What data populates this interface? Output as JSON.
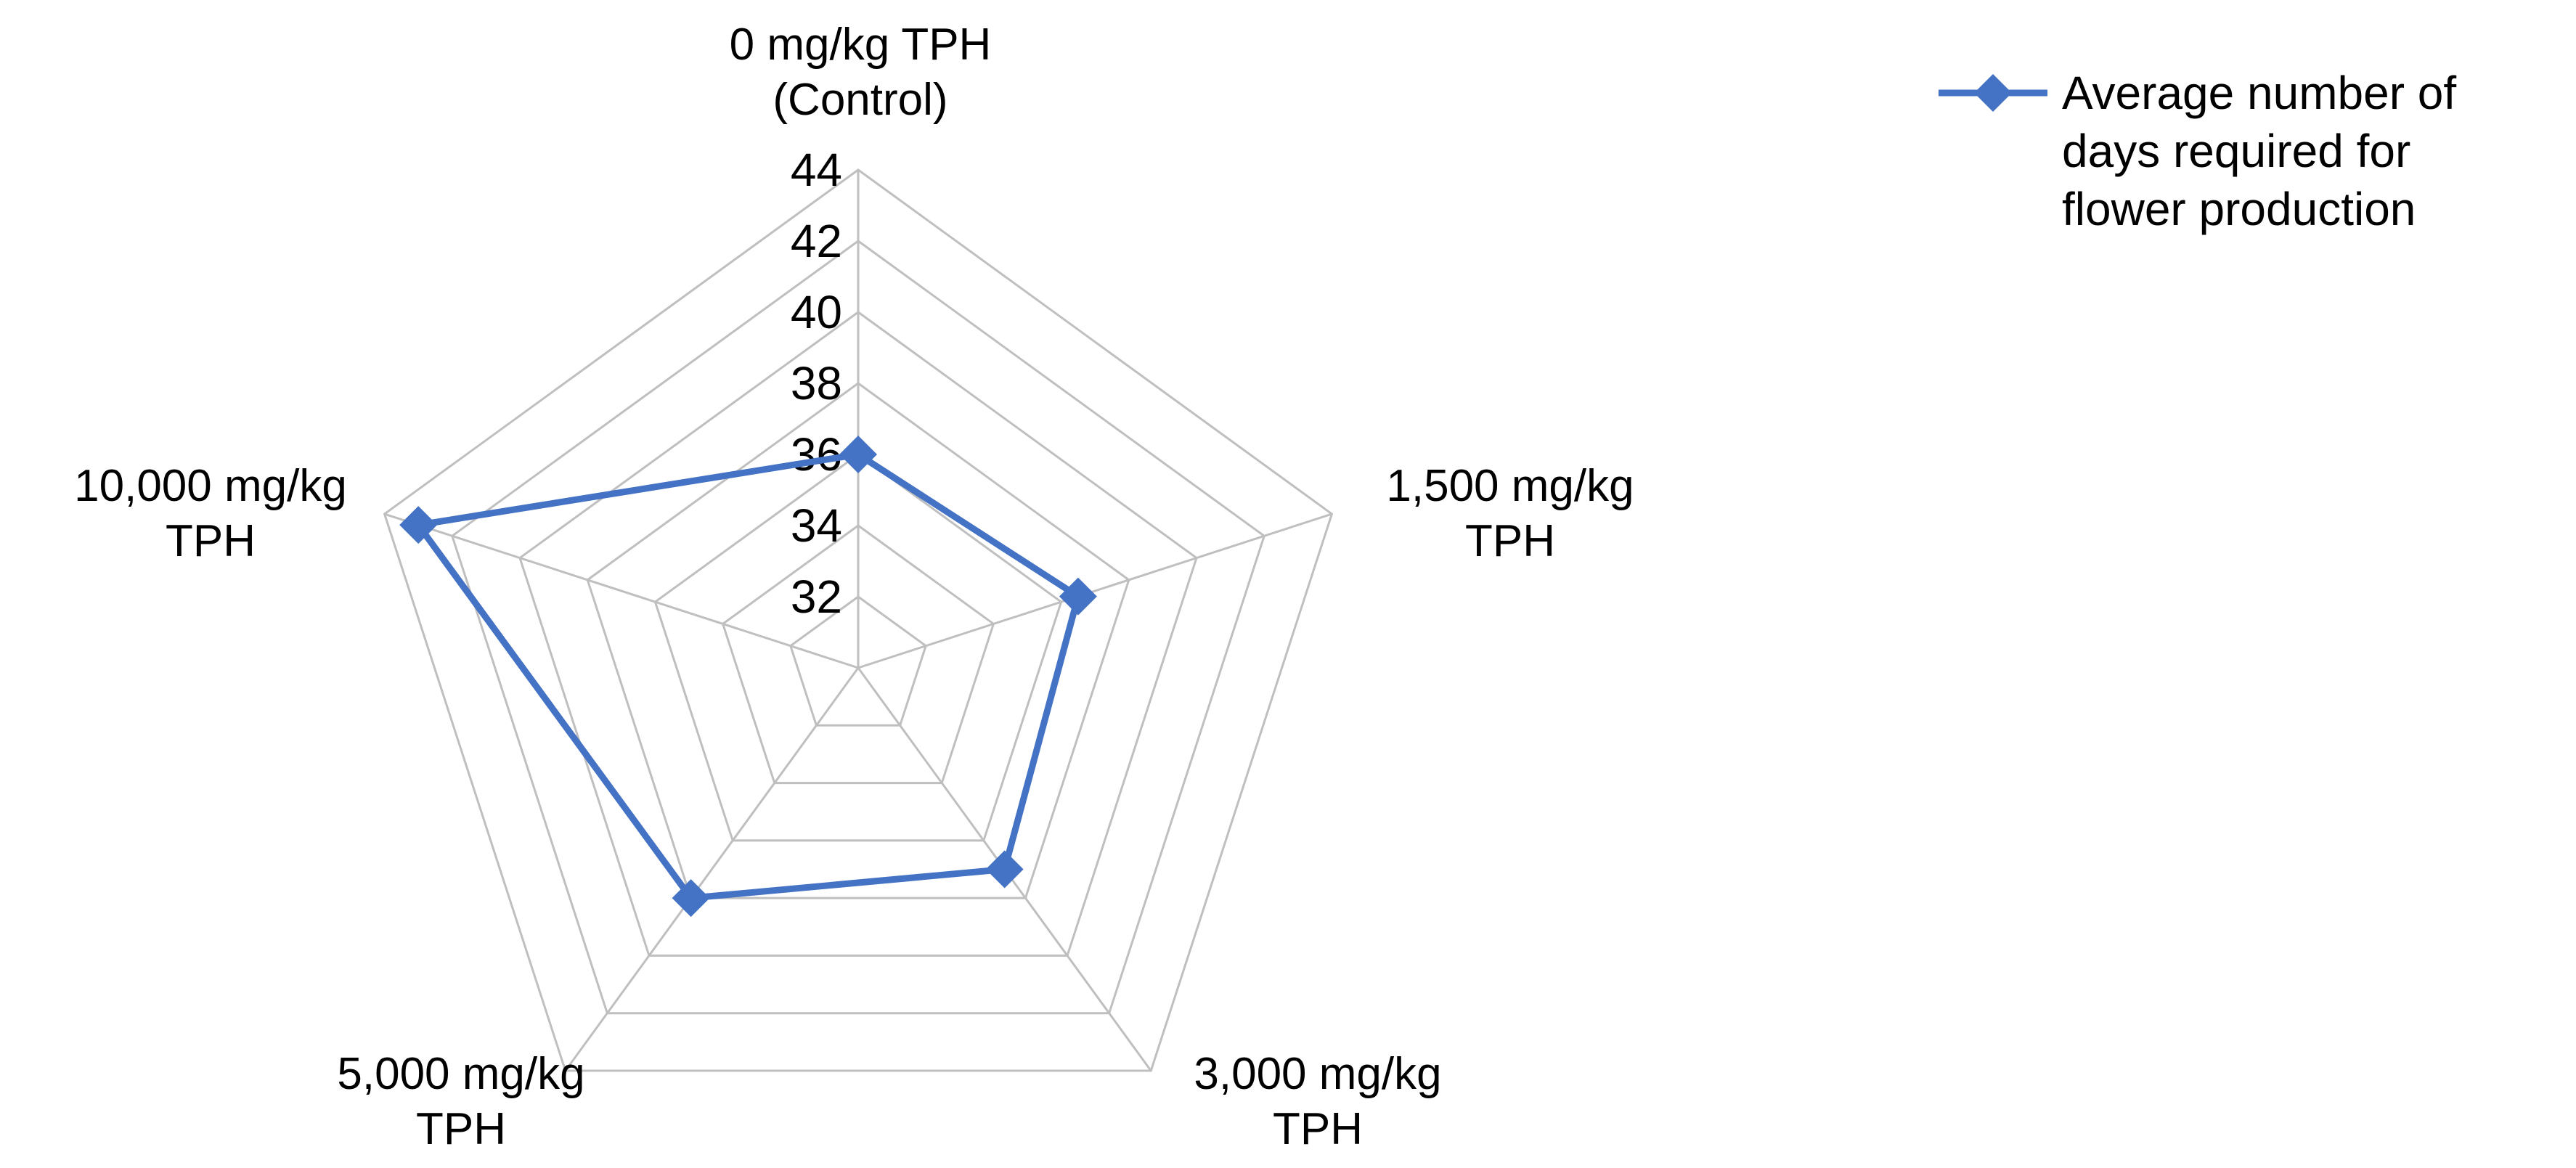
{
  "chart_data": {
    "type": "radar",
    "categories": [
      [
        "0 mg/kg TPH",
        "(Control)"
      ],
      [
        "1,500 mg/kg",
        "TPH"
      ],
      [
        "3,000 mg/kg",
        "TPH"
      ],
      [
        "5,000 mg/kg",
        "TPH"
      ],
      [
        "10,000 mg/kg",
        "TPH"
      ]
    ],
    "series": [
      {
        "name": "Average number of days required for flower production",
        "name_lines": [
          "Average number of",
          "days required for",
          "flower production"
        ],
        "values": [
          36,
          36.5,
          37,
          38,
          43
        ],
        "color": "#4472c4"
      }
    ],
    "rlim": [
      30,
      44
    ],
    "tick_values": [
      32,
      34,
      36,
      38,
      40,
      42,
      44
    ],
    "tick_labels": [
      "32",
      "34",
      "36",
      "38",
      "40",
      "42",
      "44"
    ],
    "grid": true,
    "legend_position": "top-right",
    "grid_color": "#bfbfbf"
  }
}
